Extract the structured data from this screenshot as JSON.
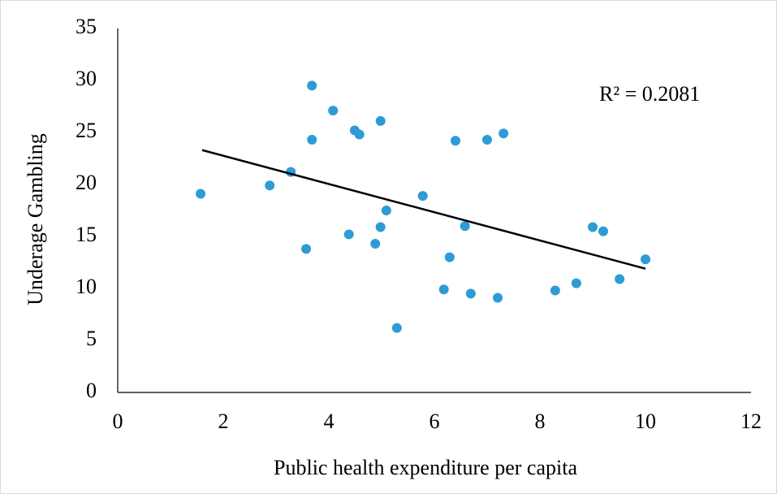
{
  "chart_data": {
    "type": "scatter",
    "x_label": "Public health expenditure per capita",
    "y_label": "Underage Gambling",
    "annotation": "R² = 0.2081",
    "xlim": [
      0,
      12
    ],
    "xticks": [
      0,
      2,
      4,
      6,
      8,
      10,
      12
    ],
    "ylim": [
      0,
      35
    ],
    "yticks": [
      0,
      5,
      10,
      15,
      20,
      25,
      30,
      35
    ],
    "grid": false,
    "series": [
      {
        "color": "#2e9bd6",
        "x": [
          1.57,
          2.88,
          3.28,
          3.57,
          3.68,
          3.68,
          4.08,
          4.38,
          4.49,
          4.58,
          4.88,
          4.98,
          4.98,
          5.09,
          5.29,
          5.78,
          6.18,
          6.29,
          6.4,
          6.58,
          6.69,
          7.0,
          7.2,
          7.31,
          8.29,
          8.69,
          9.0,
          9.2,
          9.51,
          10.0
        ],
        "values": [
          19.1,
          19.9,
          21.2,
          13.8,
          29.5,
          24.3,
          27.1,
          15.2,
          25.2,
          24.8,
          14.3,
          26.1,
          15.9,
          17.5,
          6.2,
          18.9,
          9.9,
          13.0,
          24.2,
          16.0,
          9.5,
          24.3,
          9.1,
          24.9,
          9.8,
          10.5,
          15.9,
          15.5,
          10.9,
          12.8
        ]
      }
    ],
    "trendline": {
      "color": "#000000",
      "x": [
        1.6,
        10.0
      ],
      "values": [
        23.3,
        11.9
      ]
    }
  }
}
